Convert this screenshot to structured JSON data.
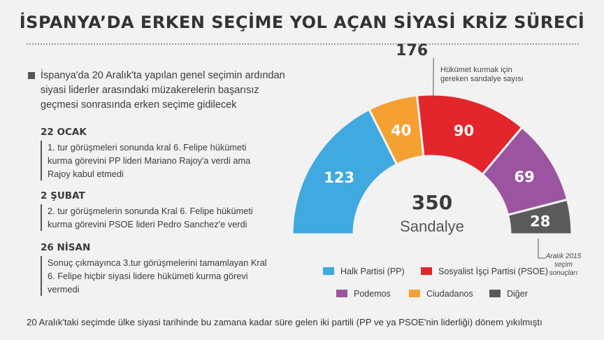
{
  "title": "İSPANYA’DA ERKEN SEÇİME YOL AÇAN SİYASİ KRİZ SÜRECİ",
  "intro": "İspanya'da 20 Aralık'ta yapılan genel seçimin ardından siyasi liderler arasındaki müzakerelerin başarısız geçmesi sonrasında erken seçime gidilecek",
  "events": [
    {
      "date": "22 OCAK",
      "text": "1. tur görüşmeleri sonunda kral 6. Felipe hükümeti kurma görevini PP lideri Mariano Rajoy'a verdi ama Rajoy kabul etmedi"
    },
    {
      "date": "2 ŞUBAT",
      "text": "2. tur görüşmelerin sonunda Kral 6. Felipe hükümeti kurma görevini PSOE lideri Pedro Sanchez'e verdi"
    },
    {
      "date": "26 NİSAN",
      "text": "Sonuç çıkmayınca 3.tur görüşmelerini tamamlayan Kral 6. Felipe hiçbir siyasi lidere hükümeti kurma görevi vermedi"
    }
  ],
  "footer": "20 Aralık'taki seçimde ülke siyasi tarihinde bu zamana kadar süre gelen iki partili (PP ve ya PSOE'nin liderliği) dönem yıkılmıştı",
  "chart_data": {
    "type": "pie",
    "shape": "half-donut",
    "total": 350,
    "total_value": "350",
    "total_label": "Sandalye",
    "majority": 176,
    "majority_value": "176",
    "majority_label": "Hükümet kurmak için gereken sandalye sayısı",
    "footnote": "Aralık 2015 seçim sonuçları",
    "slices": [
      {
        "name": "Halk Partisi (PP)",
        "value": 123,
        "color": "#3fa9e0"
      },
      {
        "name": "Ciudadanos",
        "value": 40,
        "color": "#f5a032"
      },
      {
        "name": "Sosyalist İşçi Partisi (PSOE)",
        "value": 90,
        "color": "#e3262b"
      },
      {
        "name": "Podemos",
        "value": 69,
        "color": "#9b55a0"
      },
      {
        "name": "Diğer",
        "value": 28,
        "color": "#5a5a5a"
      }
    ],
    "legend": [
      {
        "name": "Halk Partisi (PP)",
        "color": "#3fa9e0"
      },
      {
        "name": "Sosyalist İşçi Partisi (PSOE)",
        "color": "#e3262b"
      },
      {
        "name": "Podemos",
        "color": "#9b55a0"
      },
      {
        "name": "Ciudadanos",
        "color": "#f5a032"
      },
      {
        "name": "Diğer",
        "color": "#5a5a5a"
      }
    ]
  }
}
